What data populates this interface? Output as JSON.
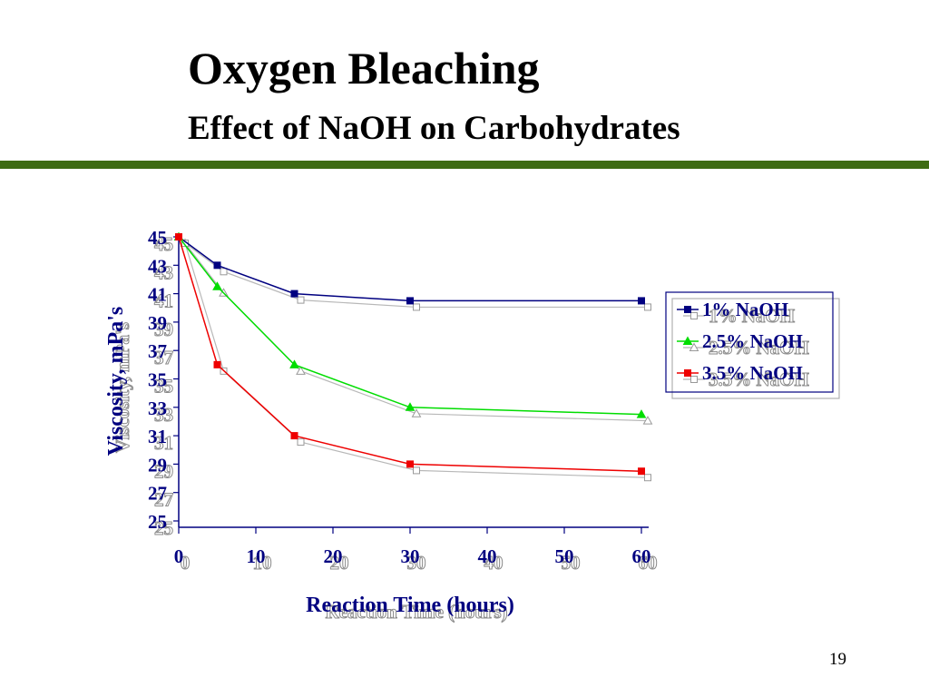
{
  "slide": {
    "title": "Oxygen Bleaching",
    "subtitle": "Effect of NaOH on Carbohydrates",
    "page_number": "19",
    "rule_color": "#3e6b14"
  },
  "chart_data": {
    "type": "line",
    "title": "",
    "xlabel": "Reaction Time (hours)",
    "ylabel": "Viscosity, mPa's",
    "xlim": [
      0,
      60
    ],
    "ylim": [
      25,
      45
    ],
    "xticks": [
      0,
      10,
      20,
      30,
      40,
      50,
      60
    ],
    "yticks": [
      25,
      27,
      29,
      31,
      33,
      35,
      37,
      39,
      41,
      43,
      45
    ],
    "grid": false,
    "legend_position": "right",
    "label_color": "#000080",
    "series": [
      {
        "name": "1% NaOH",
        "color": "#000080",
        "marker": "square",
        "x": [
          0,
          5,
          15,
          30,
          60
        ],
        "y": [
          45,
          43,
          41,
          40.5,
          40.5
        ]
      },
      {
        "name": "2.5% NaOH",
        "color": "#00dd00",
        "marker": "triangle",
        "x": [
          0,
          5,
          15,
          30,
          60
        ],
        "y": [
          45,
          41.5,
          36,
          33,
          32.5
        ]
      },
      {
        "name": "3.5% NaOH",
        "color": "#ee0000",
        "marker": "square",
        "x": [
          0,
          5,
          15,
          30,
          60
        ],
        "y": [
          45,
          36,
          31,
          29,
          28.5
        ]
      }
    ]
  }
}
